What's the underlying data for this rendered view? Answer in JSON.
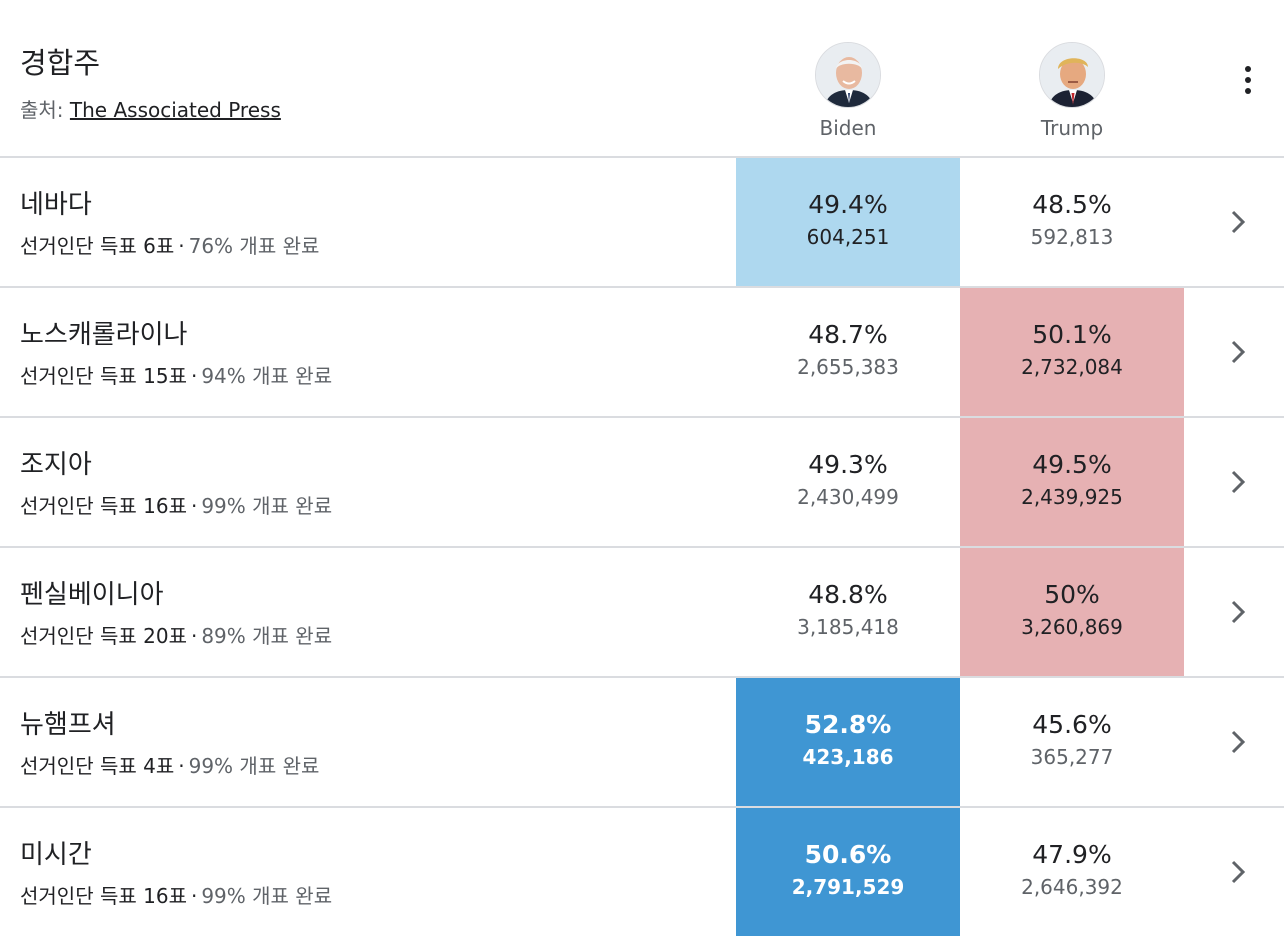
{
  "header": {
    "title": "경합주",
    "source_label": "출처:",
    "source_link": "The Associated Press"
  },
  "candidates": [
    {
      "name": "Biden"
    },
    {
      "name": "Trump"
    }
  ],
  "rows": [
    {
      "state": "네바다",
      "electors": "선거인단 득표 6표",
      "reporting": "76% 개표 완료",
      "biden_pct": "49.4%",
      "biden_votes": "604,251",
      "trump_pct": "48.5%",
      "trump_votes": "592,813"
    },
    {
      "state": "노스캐롤라이나",
      "electors": "선거인단 득표 15표",
      "reporting": "94% 개표 완료",
      "biden_pct": "48.7%",
      "biden_votes": "2,655,383",
      "trump_pct": "50.1%",
      "trump_votes": "2,732,084"
    },
    {
      "state": "조지아",
      "electors": "선거인단 득표 16표",
      "reporting": "99% 개표 완료",
      "biden_pct": "49.3%",
      "biden_votes": "2,430,499",
      "trump_pct": "49.5%",
      "trump_votes": "2,439,925"
    },
    {
      "state": "펜실베이니아",
      "electors": "선거인단 득표 20표",
      "reporting": "89% 개표 완료",
      "biden_pct": "48.8%",
      "biden_votes": "3,185,418",
      "trump_pct": "50%",
      "trump_votes": "3,260,869"
    },
    {
      "state": "뉴햄프셔",
      "electors": "선거인단 득표 4표",
      "reporting": "99% 개표 완료",
      "biden_pct": "52.8%",
      "biden_votes": "423,186",
      "trump_pct": "45.6%",
      "trump_votes": "365,277"
    },
    {
      "state": "미시간",
      "electors": "선거인단 득표 16표",
      "reporting": "99% 개표 완료",
      "biden_pct": "50.6%",
      "biden_votes": "2,791,529",
      "trump_pct": "47.9%",
      "trump_votes": "2,646,392"
    }
  ],
  "separator": "·",
  "icons": {
    "menu": "more-vert-icon",
    "row": "chevron-right-icon"
  },
  "colors": {
    "lead_blue": "#aed8ef",
    "winner_blue": "#3f96d3",
    "lead_red": "#e6b1b3"
  }
}
